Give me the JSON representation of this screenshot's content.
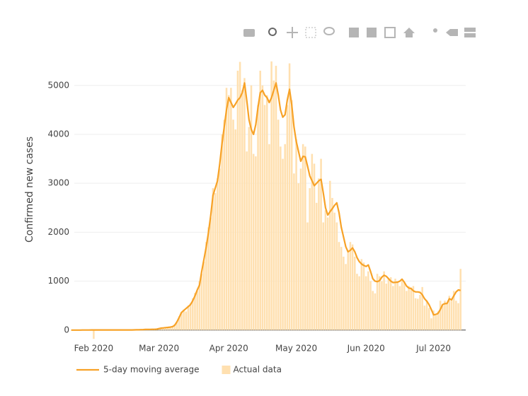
{
  "chart_data": {
    "type": "bar",
    "y_label": "Confirmed new cases",
    "categories": [
      null,
      null,
      null,
      null,
      null,
      null,
      null,
      null,
      null,
      null,
      "Feb 2020",
      null,
      null,
      null,
      null,
      null,
      null,
      null,
      null,
      null,
      null,
      null,
      null,
      null,
      null,
      null,
      null,
      null,
      null,
      null,
      null,
      null,
      null,
      null,
      null,
      null,
      null,
      null,
      null,
      "Mar 2020",
      null,
      null,
      null,
      null,
      null,
      null,
      null,
      null,
      null,
      null,
      null,
      null,
      null,
      null,
      null,
      null,
      null,
      null,
      null,
      null,
      null,
      null,
      null,
      null,
      null,
      null,
      null,
      null,
      null,
      null,
      "Apr 2020",
      null,
      null,
      null,
      null,
      null,
      null,
      null,
      null,
      null,
      null,
      null,
      null,
      null,
      null,
      null,
      null,
      null,
      null,
      null,
      null,
      null,
      null,
      null,
      null,
      null,
      null,
      null,
      null,
      null,
      "May 2020",
      null,
      null,
      null,
      null,
      null,
      null,
      null,
      null,
      null,
      null,
      null,
      null,
      null,
      null,
      null,
      null,
      null,
      null,
      null,
      null,
      null,
      null,
      null,
      null,
      null,
      null,
      null,
      null,
      null,
      null,
      "Jun 2020",
      null,
      null,
      null,
      null,
      null,
      null,
      null,
      null,
      null,
      null,
      null,
      null,
      null,
      null,
      null,
      null,
      null,
      null,
      null,
      null,
      null,
      null,
      null,
      null,
      null,
      null,
      null,
      null,
      null,
      "Jul 2020",
      null,
      null,
      null,
      null,
      null,
      null,
      null,
      null,
      null,
      null,
      null,
      null
    ],
    "series": [
      {
        "name": "5-day moving average",
        "type": "line",
        "color": "#f7a227",
        "values": [
          0,
          0,
          0,
          0,
          0,
          1,
          1,
          1,
          1,
          2,
          2,
          2,
          2,
          3,
          3,
          3,
          3,
          3,
          3,
          3,
          3,
          3,
          3,
          3,
          3,
          3,
          3,
          3,
          4,
          5,
          6,
          8,
          10,
          12,
          13,
          14,
          15,
          16,
          18,
          30,
          40,
          45,
          50,
          55,
          60,
          70,
          100,
          170,
          260,
          360,
          400,
          440,
          480,
          520,
          600,
          700,
          820,
          920,
          1200,
          1450,
          1700,
          2000,
          2350,
          2750,
          2900,
          3050,
          3400,
          3800,
          4150,
          4500,
          4750,
          4650,
          4550,
          4620,
          4700,
          4750,
          4850,
          5050,
          4700,
          4300,
          4100,
          4000,
          4200,
          4550,
          4850,
          4900,
          4800,
          4750,
          4650,
          4750,
          4900,
          5050,
          4800,
          4500,
          4350,
          4400,
          4700,
          4920,
          4600,
          4150,
          3850,
          3650,
          3450,
          3550,
          3540,
          3350,
          3150,
          3050,
          2950,
          3000,
          3050,
          3080,
          2800,
          2500,
          2350,
          2420,
          2480,
          2550,
          2600,
          2400,
          2100,
          1900,
          1700,
          1600,
          1630,
          1680,
          1600,
          1480,
          1400,
          1350,
          1320,
          1300,
          1330,
          1200,
          1050,
          1000,
          990,
          1010,
          1080,
          1120,
          1100,
          1050,
          1000,
          970,
          975,
          980,
          1000,
          1040,
          980,
          900,
          860,
          850,
          800,
          780,
          780,
          770,
          720,
          640,
          590,
          520,
          420,
          310,
          320,
          340,
          420,
          520,
          540,
          545,
          640,
          620,
          700,
          780,
          820,
          810
        ]
      },
      {
        "name": "Actual data",
        "type": "bar",
        "color": "#ffe0b0",
        "values": [
          0,
          0,
          0,
          0,
          0,
          2,
          1,
          0,
          3,
          2,
          -180,
          2,
          3,
          4,
          3,
          2,
          3,
          4,
          2,
          5,
          3,
          2,
          4,
          3,
          3,
          5,
          3,
          2,
          6,
          8,
          10,
          12,
          8,
          14,
          15,
          12,
          20,
          18,
          25,
          30,
          45,
          38,
          60,
          55,
          65,
          80,
          120,
          180,
          280,
          350,
          420,
          380,
          500,
          550,
          650,
          760,
          800,
          1000,
          1150,
          1400,
          1800,
          2100,
          2300,
          2900,
          2800,
          3100,
          3300,
          4000,
          4300,
          4950,
          4800,
          4950,
          4300,
          4100,
          5300,
          5480,
          4900,
          5150,
          3650,
          4150,
          5000,
          3600,
          3550,
          4600,
          5300,
          5000,
          4600,
          4800,
          3800,
          5490,
          5100,
          5400,
          4300,
          3750,
          3500,
          3800,
          4600,
          5450,
          4700,
          3200,
          3900,
          3000,
          3300,
          3800,
          3750,
          2200,
          2900,
          3600,
          3400,
          2600,
          3100,
          3500,
          2200,
          2450,
          2300,
          3050,
          2700,
          2400,
          2200,
          1800,
          1700,
          1500,
          1350,
          1600,
          1800,
          1750,
          1500,
          1150,
          1100,
          1450,
          1380,
          1100,
          1200,
          1000,
          800,
          750,
          1150,
          1100,
          1000,
          1200,
          950,
          1050,
          1080,
          900,
          1050,
          1000,
          900,
          1030,
          980,
          800,
          900,
          870,
          900,
          650,
          640,
          720,
          880,
          500,
          600,
          450,
          240,
          400,
          300,
          380,
          600,
          500,
          600,
          550,
          700,
          620,
          800,
          600,
          550,
          1250
        ]
      }
    ],
    "ylim": [
      -220,
      5560
    ],
    "yticks": [
      0,
      1000,
      2000,
      3000,
      4000,
      5000
    ],
    "grid": true,
    "legend": "bottom"
  }
}
